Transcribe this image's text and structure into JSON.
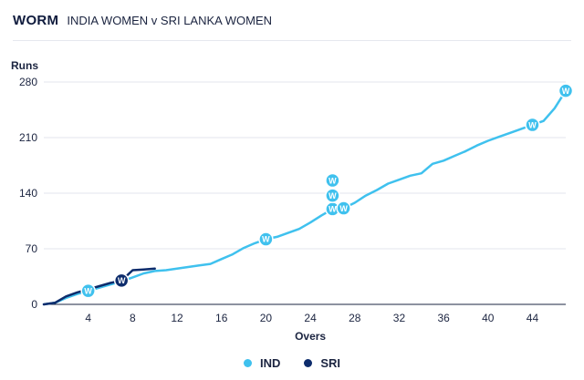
{
  "header": {
    "title": "WORM",
    "match": "INDIA WOMEN v SRI LANKA WOMEN"
  },
  "chart_data": {
    "type": "line",
    "title": "WORM",
    "subtitle": "INDIA WOMEN v SRI LANKA WOMEN",
    "xlabel": "Overs",
    "ylabel": "Runs",
    "xlim": [
      0,
      47
    ],
    "ylim": [
      0,
      280
    ],
    "xticks": [
      4,
      8,
      12,
      16,
      20,
      24,
      28,
      32,
      36,
      40,
      44
    ],
    "yticks": [
      0,
      70,
      140,
      210,
      280
    ],
    "wicket_label": "W",
    "series": [
      {
        "name": "IND",
        "color": "#3fc1ee",
        "points": [
          [
            0,
            0
          ],
          [
            1,
            2
          ],
          [
            2,
            8
          ],
          [
            3,
            13
          ],
          [
            4,
            17
          ],
          [
            5,
            21
          ],
          [
            6,
            25
          ],
          [
            7,
            29
          ],
          [
            8,
            34
          ],
          [
            9,
            39
          ],
          [
            10,
            42
          ],
          [
            11,
            43
          ],
          [
            12,
            45
          ],
          [
            13,
            47
          ],
          [
            14,
            49
          ],
          [
            15,
            51
          ],
          [
            16,
            57
          ],
          [
            17,
            63
          ],
          [
            18,
            71
          ],
          [
            19,
            77
          ],
          [
            20,
            82
          ],
          [
            21,
            85
          ],
          [
            22,
            90
          ],
          [
            23,
            95
          ],
          [
            24,
            103
          ],
          [
            25,
            112
          ],
          [
            26,
            120
          ],
          [
            27,
            121
          ],
          [
            28,
            128
          ],
          [
            29,
            137
          ],
          [
            30,
            144
          ],
          [
            31,
            152
          ],
          [
            32,
            157
          ],
          [
            33,
            162
          ],
          [
            34,
            165
          ],
          [
            35,
            177
          ],
          [
            36,
            181
          ],
          [
            37,
            187
          ],
          [
            38,
            193
          ],
          [
            39,
            200
          ],
          [
            40,
            206
          ],
          [
            41,
            211
          ],
          [
            42,
            216
          ],
          [
            43,
            221
          ],
          [
            44,
            226
          ],
          [
            45,
            231
          ],
          [
            46,
            247
          ],
          [
            47,
            269
          ]
        ],
        "wickets": [
          [
            4,
            17
          ],
          [
            20,
            82
          ],
          [
            26,
            120
          ],
          [
            26,
            137
          ],
          [
            26,
            156
          ],
          [
            27,
            121
          ],
          [
            44,
            226
          ],
          [
            47,
            269
          ]
        ]
      },
      {
        "name": "SRI",
        "color": "#0d2c6c",
        "points": [
          [
            0,
            0
          ],
          [
            1,
            2
          ],
          [
            2,
            10
          ],
          [
            3,
            15
          ],
          [
            4,
            19
          ],
          [
            5,
            23
          ],
          [
            6,
            27
          ],
          [
            7,
            30
          ],
          [
            8,
            43
          ],
          [
            9,
            44
          ],
          [
            10,
            45
          ]
        ],
        "wickets": [
          [
            7,
            30
          ]
        ]
      }
    ],
    "legend": [
      "IND",
      "SRI"
    ],
    "legend_position": "bottom-center"
  }
}
